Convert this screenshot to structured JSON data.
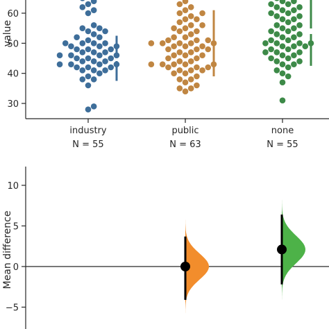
{
  "chart_data": [
    {
      "type": "scatter",
      "subtype": "swarmplot",
      "ylabel": "value",
      "ylim": [
        26,
        66
      ],
      "yticks": [
        "30",
        "40",
        "50",
        "60"
      ],
      "categories": [
        {
          "name": "industry",
          "n_label": "N = 55",
          "color": "#3e6e9a",
          "mean": 45,
          "sd": 7.5,
          "values": [
            28,
            29,
            36,
            38,
            38,
            39,
            40,
            41,
            41,
            41,
            42,
            42,
            42,
            43,
            43,
            43,
            43,
            44,
            44,
            44,
            45,
            45,
            45,
            46,
            46,
            46,
            46,
            47,
            47,
            47,
            48,
            48,
            48,
            49,
            49,
            49,
            50,
            50,
            50,
            50,
            51,
            52,
            52,
            53,
            54,
            54,
            55,
            55,
            56,
            60,
            61,
            62,
            63,
            64,
            65
          ]
        },
        {
          "name": "public",
          "n_label": "N = 63",
          "color": "#c08642",
          "mean": 50,
          "sd": 11,
          "values": [
            34,
            35,
            35,
            36,
            37,
            38,
            38,
            39,
            40,
            40,
            41,
            41,
            41,
            42,
            42,
            42,
            43,
            43,
            43,
            43,
            43,
            44,
            44,
            45,
            45,
            46,
            46,
            46,
            47,
            47,
            48,
            48,
            48,
            49,
            49,
            49,
            50,
            50,
            50,
            50,
            50,
            51,
            51,
            51,
            52,
            52,
            53,
            54,
            54,
            55,
            55,
            56,
            56,
            57,
            58,
            58,
            59,
            60,
            60,
            61,
            62,
            63,
            64
          ]
        },
        {
          "name": "none",
          "n_label": "N = 55",
          "color": "#3d8a48",
          "mean": 54,
          "sd": 11.5,
          "values": [
            31,
            37,
            39,
            40,
            41,
            42,
            43,
            43,
            44,
            44,
            45,
            45,
            46,
            46,
            47,
            47,
            47,
            48,
            48,
            49,
            49,
            49,
            50,
            50,
            50,
            50,
            51,
            51,
            52,
            52,
            53,
            53,
            54,
            54,
            55,
            55,
            56,
            56,
            57,
            58,
            58,
            59,
            59,
            60,
            60,
            61,
            61,
            62,
            62,
            63,
            63,
            64,
            64,
            65,
            66
          ]
        }
      ]
    },
    {
      "type": "scatter",
      "subtype": "estimation-plot",
      "ylabel": "Mean difference",
      "ylim": [
        -7.5,
        12.5
      ],
      "yticks": [
        "−5",
        "0",
        "5",
        "10"
      ],
      "zero_line": 0,
      "comparisons": [
        {
          "against": "public",
          "color": "#f28d2c",
          "mean_diff": 0,
          "ci": [
            -4.1,
            3.7
          ],
          "spread_sd": 1.6,
          "dist_range": [
            -6.8,
            6.5
          ]
        },
        {
          "against": "none",
          "color": "#4db248",
          "mean_diff": 2.1,
          "ci": [
            -2.2,
            6.4
          ],
          "spread_sd": 1.7,
          "dist_range": [
            -4.3,
            8.6
          ]
        }
      ]
    }
  ]
}
